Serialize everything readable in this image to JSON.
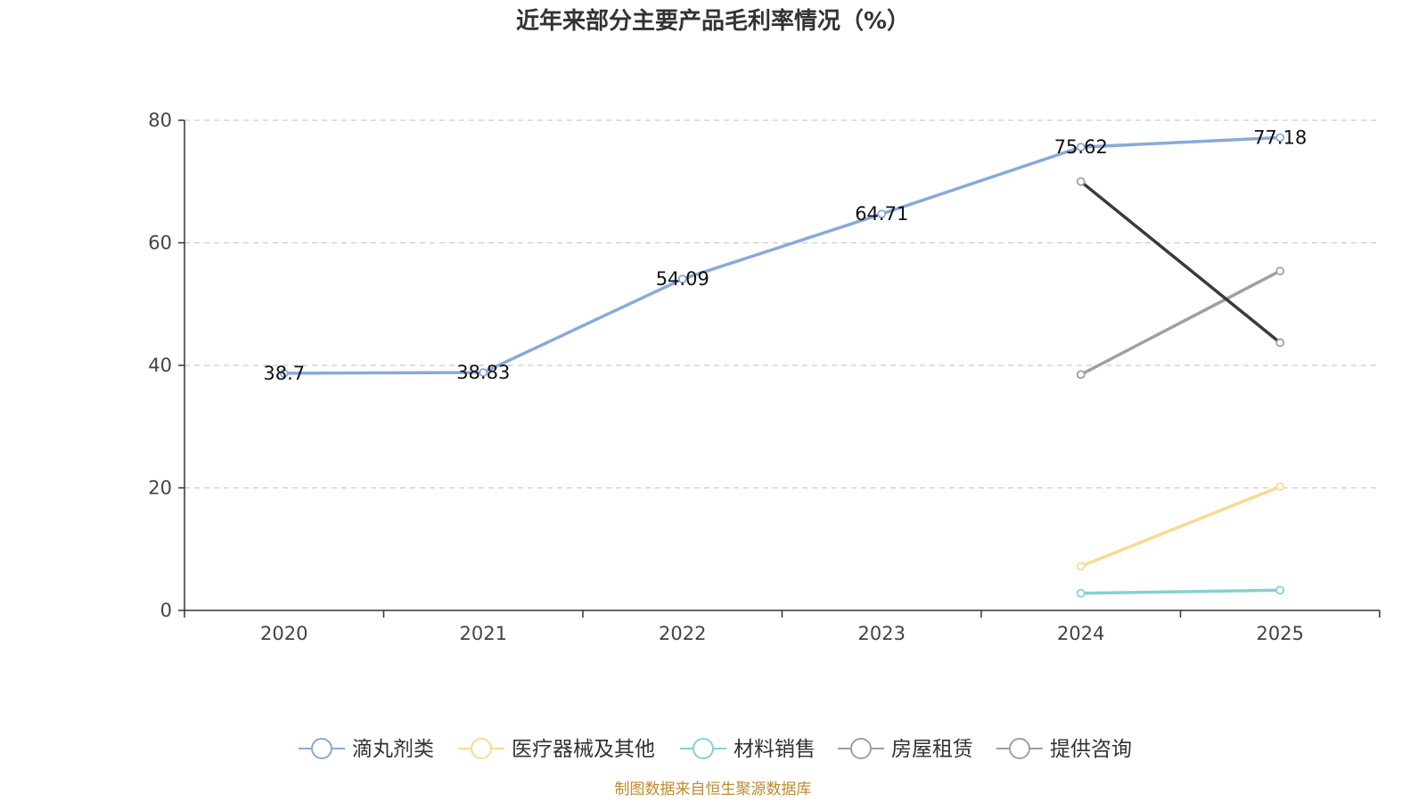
{
  "chart_data": {
    "type": "line",
    "title": "近年来部分主要产品毛利率情况（%）",
    "categories": [
      "2020",
      "2021",
      "2022",
      "2023",
      "2024",
      "2025"
    ],
    "ylim": [
      0,
      80
    ],
    "yticks": [
      0,
      20,
      40,
      60,
      80
    ],
    "grid": true,
    "legend_position": "bottom",
    "series": [
      {
        "name": "滴丸剂类",
        "color": "#8aaad6",
        "values": [
          38.7,
          38.83,
          54.09,
          64.71,
          75.62,
          77.18
        ],
        "labels": [
          "38.7",
          "38.83",
          "54.09",
          "64.71",
          "75.62",
          "77.18"
        ]
      },
      {
        "name": "医疗器械及其他",
        "color": "#f9d993",
        "values": [
          null,
          null,
          null,
          null,
          7.2,
          20.2
        ]
      },
      {
        "name": "材料销售",
        "color": "#86d0d3",
        "values": [
          null,
          null,
          null,
          null,
          2.8,
          3.3
        ]
      },
      {
        "name": "房屋租赁",
        "color": "#a0a0a0",
        "values": [
          null,
          null,
          null,
          null,
          38.5,
          55.4
        ]
      },
      {
        "name": "提供咨询",
        "color": "#3a3a3a",
        "legend_color": "#a0a0a0",
        "values": [
          null,
          null,
          null,
          null,
          70.0,
          43.7
        ]
      }
    ],
    "source": "制图数据来自恒生聚源数据库"
  }
}
